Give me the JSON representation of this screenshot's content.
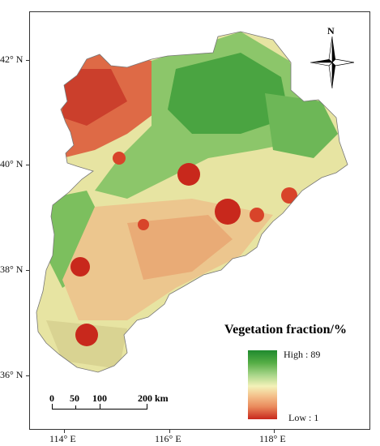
{
  "map": {
    "lat_labels": [
      "42° N",
      "40° N",
      "38° N",
      "36° N"
    ],
    "lon_labels": [
      "114° E",
      "116° E",
      "118° E"
    ]
  },
  "north_arrow": {
    "label": "N"
  },
  "legend": {
    "title": "Vegetation fraction/%",
    "high_label": "High : 89",
    "low_label": "Low : 1",
    "colors": [
      "#1f8a2e",
      "#a9d68a",
      "#f3f1b8",
      "#ea8a5c",
      "#c8281c"
    ]
  },
  "scale_bar": {
    "labels": [
      "0",
      "50",
      "100",
      "200 km"
    ]
  }
}
